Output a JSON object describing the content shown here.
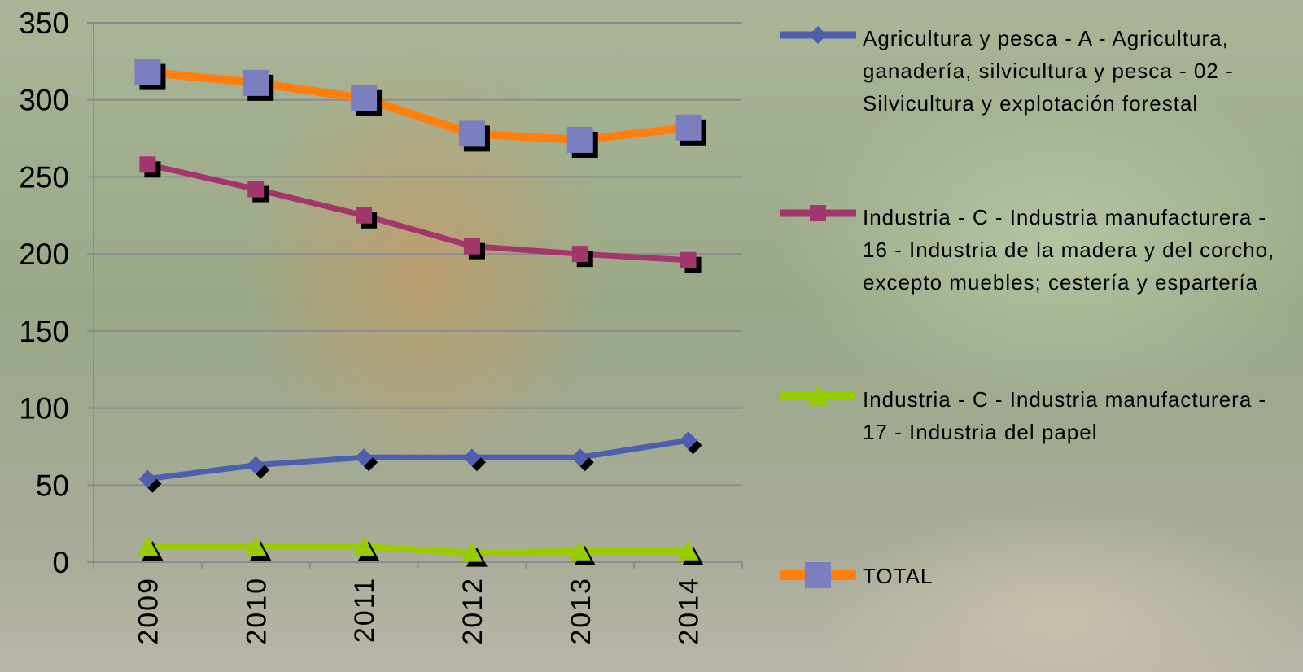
{
  "chart_data": {
    "type": "line",
    "categories": [
      "2009",
      "2010",
      "2011",
      "2012",
      "2013",
      "2014"
    ],
    "series": [
      {
        "name": "Agricultura y pesca - A - Agricultura, ganadería, silvicultura y pesca - 02 - Silvicultura y explotación forestal",
        "color": "#4f5fb0",
        "marker": "diamond",
        "marker_color": "#4f5fb0",
        "values": [
          54,
          63,
          68,
          68,
          68,
          79
        ]
      },
      {
        "name": "Industria - C - Industria manufacturera - 16 - Industria de la madera y del corcho, excepto muebles; cestería y espartería",
        "color": "#a3366a",
        "marker": "square",
        "marker_color": "#a3366a",
        "values": [
          258,
          242,
          225,
          205,
          200,
          196
        ]
      },
      {
        "name": "Industria - C - Industria manufacturera - 17 - Industria del papel",
        "color": "#99cc00",
        "marker": "triangle",
        "marker_color": "#99cc00",
        "values": [
          10,
          10,
          10,
          6,
          7,
          7
        ]
      },
      {
        "name": "TOTAL",
        "color": "#ff7f0e",
        "marker": "square",
        "marker_color": "#7b7fc0",
        "values": [
          318,
          311,
          301,
          278,
          274,
          282
        ]
      }
    ],
    "ylim": [
      0,
      350
    ],
    "yticks": [
      0,
      50,
      100,
      150,
      200,
      250,
      300,
      350
    ],
    "grid": true,
    "legend": "right"
  }
}
